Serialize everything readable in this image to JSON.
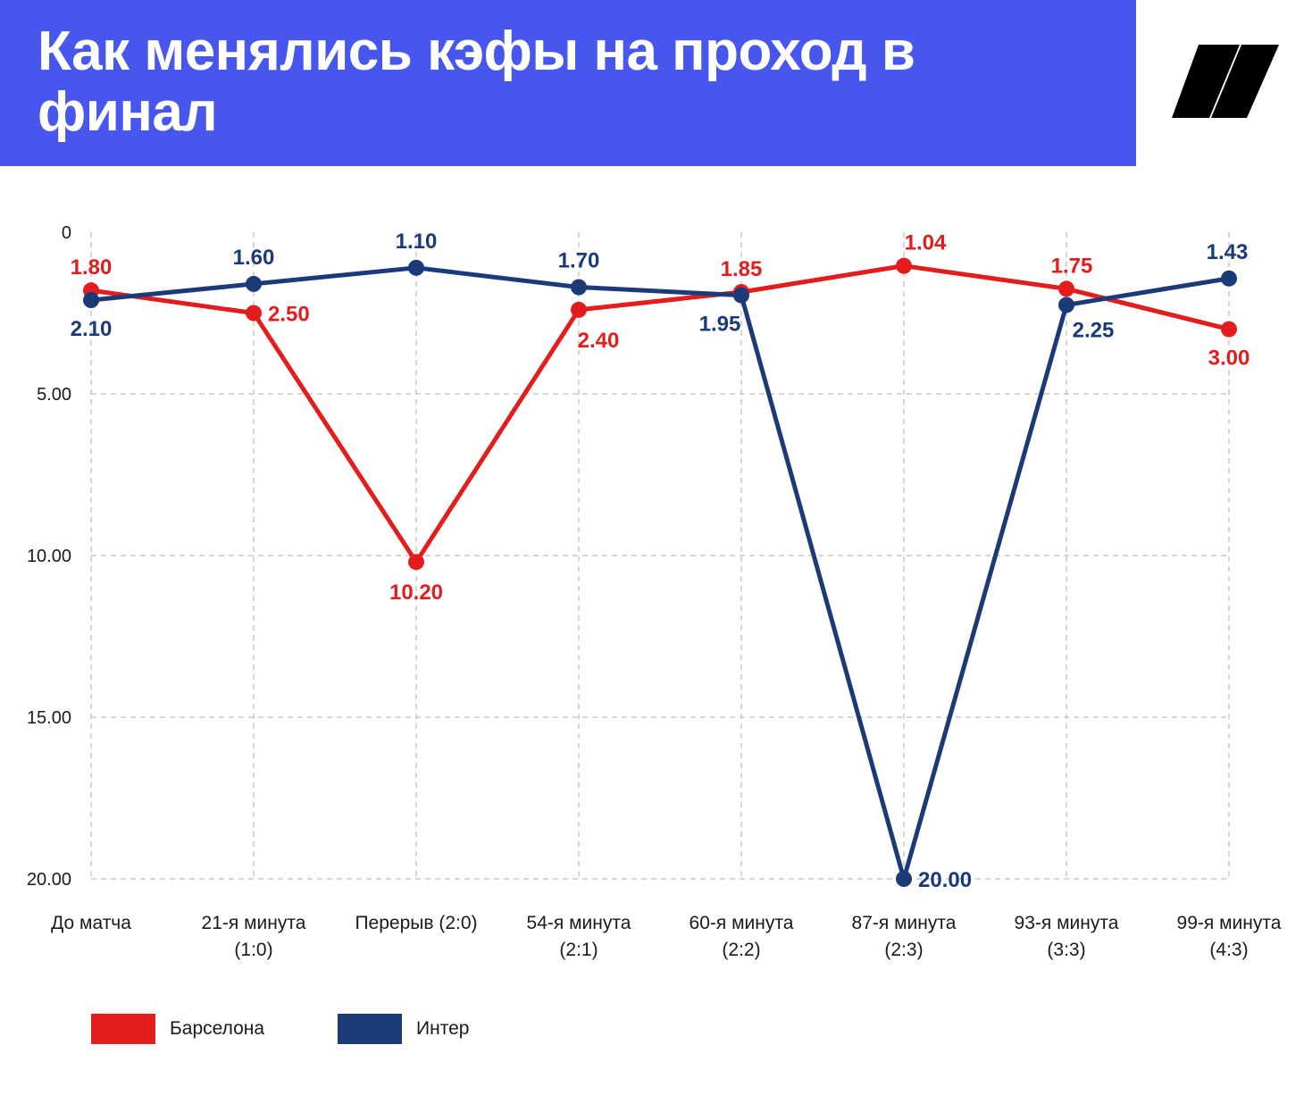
{
  "header": {
    "title": "Как менялись кэфы на проход в финал",
    "accent_color": "#4757ee",
    "logo_icon": "slash-logo-icon"
  },
  "chart_data": {
    "type": "line",
    "title": "Как менялись кэфы на проход в финал",
    "xlabel": "",
    "ylabel": "",
    "y_inverted": true,
    "ylim": [
      0,
      20
    ],
    "yticks": [
      "0",
      "5.00",
      "10.00",
      "15.00",
      "20.00"
    ],
    "grid": true,
    "legend_position": "bottom-left",
    "categories": [
      [
        "До матча"
      ],
      [
        "21-я минута",
        "(1:0)"
      ],
      [
        "Перерыв (2:0)"
      ],
      [
        "54-я минута",
        "(2:1)"
      ],
      [
        "60-я минута",
        "(2:2)"
      ],
      [
        "87-я минута",
        "(2:3)"
      ],
      [
        "93-я минута",
        "(3:3)"
      ],
      [
        "99-я минута",
        "(4:3)"
      ]
    ],
    "series": [
      {
        "name": "Барселона",
        "color": "#e31d1d",
        "values": [
          1.8,
          2.5,
          10.2,
          2.4,
          1.85,
          1.04,
          1.75,
          3.0
        ],
        "labels": [
          "1.80",
          "2.50",
          "10.20",
          "2.40",
          "1.85",
          "1.04",
          "1.75",
          "3.00"
        ]
      },
      {
        "name": "Интер",
        "color": "#1b3a78",
        "values": [
          2.1,
          1.6,
          1.1,
          1.7,
          1.95,
          20.0,
          2.25,
          1.43
        ],
        "labels": [
          "2.10",
          "1.60",
          "1.10",
          "1.70",
          "1.95",
          "20.00",
          "2.25",
          "1.43"
        ]
      }
    ]
  },
  "legend": {
    "items": [
      {
        "label": "Барселона",
        "color": "#e31d1d"
      },
      {
        "label": "Интер",
        "color": "#1b3a78"
      }
    ]
  }
}
